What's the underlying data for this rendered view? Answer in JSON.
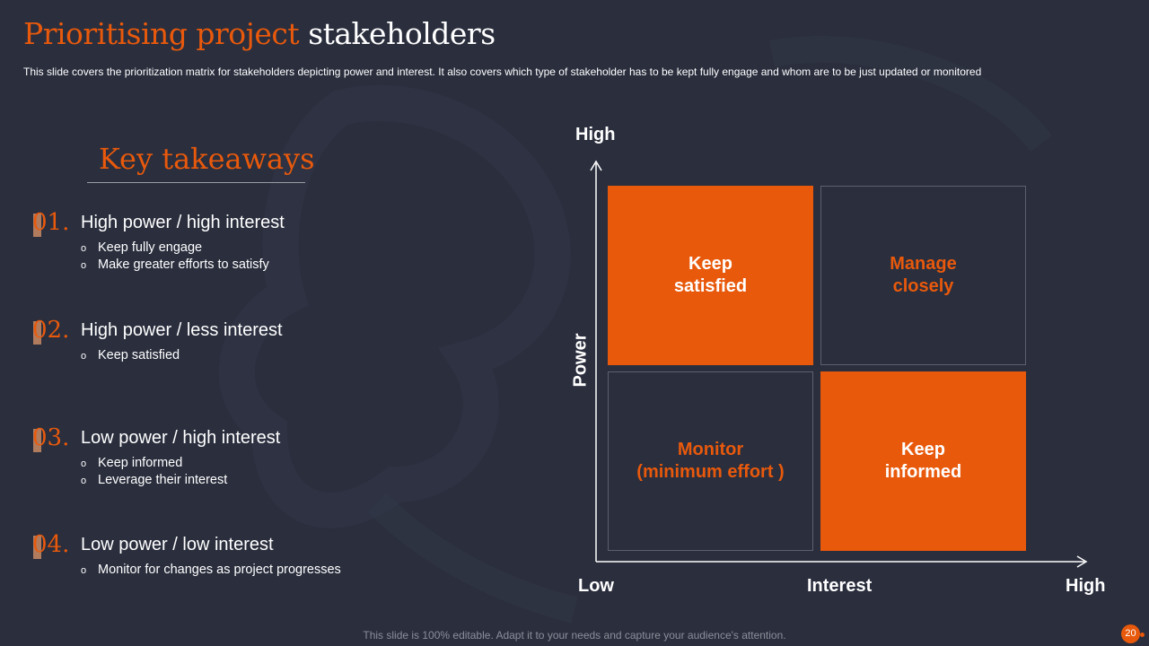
{
  "slide": {
    "title_accent": "Prioritising project",
    "title_rest": "stakeholders",
    "subtitle": "This slide covers the prioritization matrix for stakeholders depicting power and interest. It also covers which type of stakeholder has to be kept fully engage and whom are to be just updated or monitored",
    "footer": "This slide is 100% editable. Adapt it to your needs and capture your audience's attention.",
    "page_number": "20"
  },
  "key_takeaways": {
    "title": "Key takeaways",
    "items": [
      {
        "num": "01.",
        "heading": "High power / high interest",
        "bullets": [
          "Keep fully engage",
          "Make greater efforts to satisfy"
        ]
      },
      {
        "num": "02.",
        "heading": "High power / less interest",
        "bullets": [
          "Keep satisfied"
        ]
      },
      {
        "num": "03.",
        "heading": "Low power / high interest",
        "bullets": [
          "Keep informed",
          "Leverage their interest"
        ]
      },
      {
        "num": "04.",
        "heading": "Low power / low interest",
        "bullets": [
          "Monitor for changes as project progresses"
        ]
      }
    ],
    "bullet_glyph": "o"
  },
  "matrix": {
    "y_axis_label": "Power",
    "y_high": "High",
    "x_axis_label": "Interest",
    "x_low": "Low",
    "x_high": "High",
    "quadrants": {
      "top_left": {
        "line1": "Keep",
        "line2": "satisfied",
        "style": "filled"
      },
      "top_right": {
        "line1": "Manage",
        "line2": "closely",
        "style": "outline"
      },
      "bottom_left": {
        "line1": "Monitor",
        "line2": "(minimum effort )",
        "style": "outline"
      },
      "bottom_right": {
        "line1": "Keep",
        "line2": "informed",
        "style": "filled"
      }
    }
  },
  "colors": {
    "accent": "#e8590c",
    "background": "#2a2e3d",
    "outline": "#5b5f6e"
  }
}
